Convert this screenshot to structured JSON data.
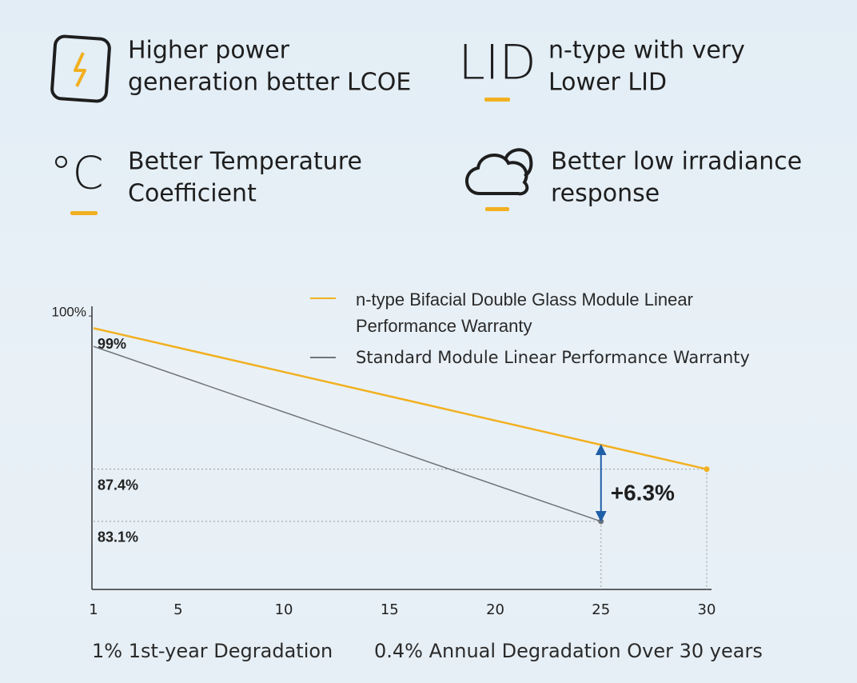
{
  "features": [
    {
      "lines": [
        "Higher power",
        "generation better LCOE"
      ]
    },
    {
      "icon_text": "LID",
      "lines": [
        "n-type with very",
        "Lower LID"
      ]
    },
    {
      "icon_text": "°C",
      "lines": [
        "Better Temperature",
        "Coefficient"
      ]
    },
    {
      "lines": [
        "Better low irradiance",
        "response"
      ]
    }
  ],
  "chart_data": {
    "type": "line",
    "series": [
      {
        "name": "n-type Bifacial Double Glass Module Linear Performance Warranty",
        "color": "#f2b020",
        "x": [
          1,
          30
        ],
        "values": [
          99,
          87.4
        ],
        "value_labels": [
          "99%",
          "87.4%"
        ]
      },
      {
        "name": "Standard Module Linear Performance Warranty",
        "color": "#707478",
        "x": [
          1,
          25
        ],
        "values": [
          97.5,
          83.1
        ],
        "value_labels": [
          null,
          "83.1%"
        ]
      }
    ],
    "difference": {
      "value": 6.3,
      "label": "+6.3%"
    },
    "xlim": [
      1,
      30
    ],
    "xticks": [
      1,
      5,
      10,
      15,
      20,
      25,
      30
    ],
    "ylim": [
      77.5,
      100.8
    ],
    "yticks": [
      {
        "value": 100,
        "label": "100%"
      }
    ],
    "notes": [
      "1% 1st-year Degradation",
      "0.4% Annual Degradation Over 30 years"
    ]
  }
}
